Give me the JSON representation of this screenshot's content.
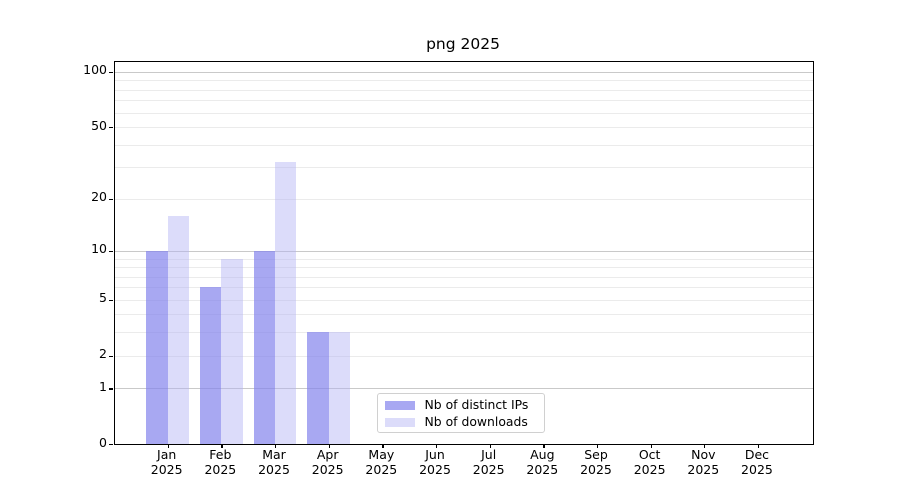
{
  "chart_data": {
    "type": "bar",
    "title": "png 2025",
    "categories": [
      "Jan",
      "Feb",
      "Mar",
      "Apr",
      "May",
      "Jun",
      "Jul",
      "Aug",
      "Sep",
      "Oct",
      "Nov",
      "Dec"
    ],
    "category_year": "2025",
    "series": [
      {
        "name": "Nb of distinct IPs",
        "color": "#8383ec",
        "opacity": 0.7,
        "values": [
          10,
          6,
          10,
          3,
          0,
          0,
          0,
          0,
          0,
          0,
          0,
          0
        ]
      },
      {
        "name": "Nb of downloads",
        "color": "#b1b1f4",
        "opacity": 0.45,
        "values": [
          16,
          9,
          32,
          3,
          0,
          0,
          0,
          0,
          0,
          0,
          0,
          0
        ]
      }
    ],
    "xlabel": "",
    "ylabel": "",
    "yscale": "log1p",
    "ylim": [
      0,
      114
    ],
    "yticks": [
      0,
      1,
      2,
      5,
      10,
      20,
      50,
      100
    ],
    "major_gridlines": [
      1,
      10,
      100
    ],
    "minor_gridlines": [
      2,
      3,
      4,
      5,
      6,
      7,
      8,
      9,
      20,
      30,
      40,
      50,
      60,
      70,
      80,
      90
    ],
    "grid": true,
    "legend_position": "lower center",
    "legend_items": [
      "Nb of distinct IPs",
      "Nb of downloads"
    ]
  },
  "colors": {
    "axis": "#000000",
    "major_grid": "#c9c9c9",
    "minor_grid": "#ebebeb",
    "background": "#ffffff"
  }
}
